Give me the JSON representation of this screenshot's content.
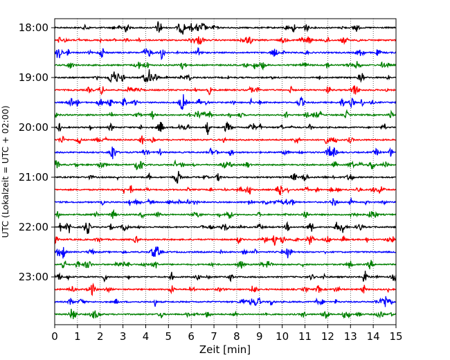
{
  "chart_data": {
    "type": "line",
    "xlabel": "Zeit  [min]",
    "ylabel": "UTC (Lokalzeit = UTC + 02:00)",
    "xlim": [
      0,
      15
    ],
    "x_ticks": [
      "0",
      "1",
      "2",
      "3",
      "4",
      "5",
      "6",
      "7",
      "8",
      "9",
      "10",
      "11",
      "12",
      "13",
      "14",
      "15"
    ],
    "y_ticks": [
      "18:00",
      "19:00",
      "20:00",
      "21:00",
      "22:00",
      "23:00"
    ],
    "grid": "vertical dotted",
    "traces_per_hour": 4,
    "trace_count": 24,
    "series_colors": [
      "#000000",
      "#ff0000",
      "#0000ff",
      "#008000"
    ]
  }
}
